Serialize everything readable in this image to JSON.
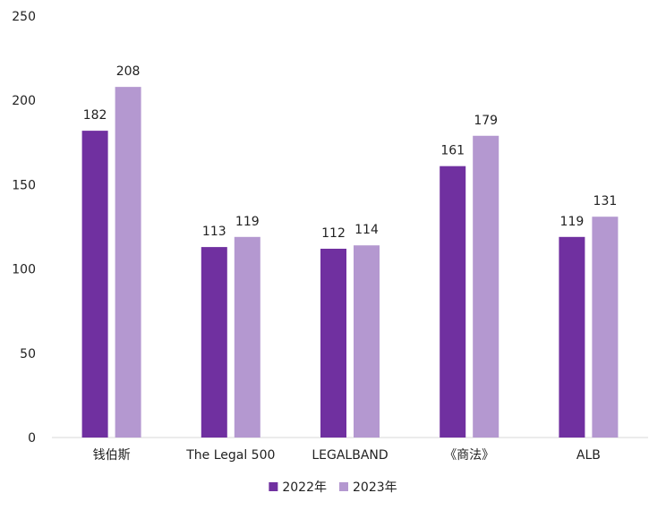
{
  "chart_data": {
    "type": "bar",
    "title": "",
    "xlabel": "",
    "ylabel": "",
    "ylim": [
      0,
      250
    ],
    "yticks": [
      0,
      50,
      100,
      150,
      200,
      250
    ],
    "grid": false,
    "legend_position": "bottom-center",
    "categories": [
      "钱伯斯",
      "The Legal 500",
      "LEGALBAND",
      "《商法》",
      "ALB"
    ],
    "series": [
      {
        "name": "2022年",
        "color": "#7030A0",
        "values": [
          182,
          113,
          112,
          161,
          119
        ]
      },
      {
        "name": "2023年",
        "color": "#B498D0",
        "values": [
          208,
          119,
          114,
          179,
          131
        ]
      }
    ]
  }
}
